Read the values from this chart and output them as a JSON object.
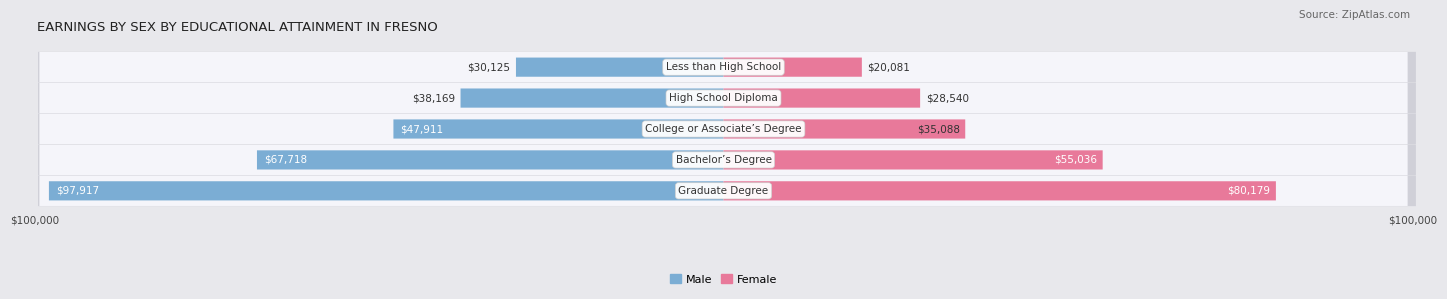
{
  "title": "EARNINGS BY SEX BY EDUCATIONAL ATTAINMENT IN FRESNO",
  "source": "Source: ZipAtlas.com",
  "categories": [
    "Less than High School",
    "High School Diploma",
    "College or Associate’s Degree",
    "Bachelor’s Degree",
    "Graduate Degree"
  ],
  "male_values": [
    30125,
    38169,
    47911,
    67718,
    97917
  ],
  "female_values": [
    20081,
    28540,
    35088,
    55036,
    80179
  ],
  "male_color": "#7badd4",
  "female_color": "#e8799a",
  "max_value": 100000,
  "background_color": "#e8e8ec",
  "row_bg_light": "#f4f4f8",
  "row_bg_dark": "#e0e0e8",
  "title_fontsize": 9.5,
  "source_fontsize": 7.5,
  "bar_label_fontsize": 7.5,
  "cat_label_fontsize": 7.5,
  "axis_label_fontsize": 7.5
}
